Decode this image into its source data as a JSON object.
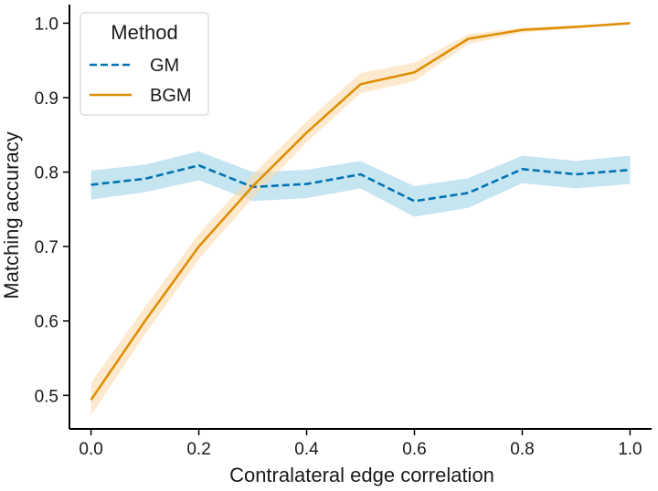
{
  "chart_data": {
    "type": "line",
    "title": "",
    "xlabel": "Contralateral edge correlation",
    "ylabel": "Matching accuracy",
    "xlim": [
      -0.04,
      1.04
    ],
    "ylim": [
      0.455,
      1.025
    ],
    "xticks": [
      0.0,
      0.2,
      0.4,
      0.6,
      0.8,
      1.0
    ],
    "xtick_labels": [
      "0.0",
      "0.2",
      "0.4",
      "0.6",
      "0.8",
      "1.0"
    ],
    "yticks": [
      0.5,
      0.6,
      0.7,
      0.8,
      0.9,
      1.0
    ],
    "ytick_labels": [
      "0.5",
      "0.6",
      "0.7",
      "0.8",
      "0.9",
      "1.0"
    ],
    "grid": false,
    "legend": {
      "title": "Method",
      "placement": "top-left"
    },
    "x": [
      0.0,
      0.1,
      0.2,
      0.3,
      0.4,
      0.5,
      0.6,
      0.7,
      0.8,
      0.9,
      1.0
    ],
    "series": [
      {
        "name": "GM",
        "color": "#0173b2",
        "band_color": "#9fd3e8",
        "style": "dashed",
        "values": [
          0.783,
          0.791,
          0.809,
          0.78,
          0.784,
          0.797,
          0.761,
          0.772,
          0.804,
          0.797,
          0.803
        ],
        "lower": [
          0.763,
          0.773,
          0.789,
          0.761,
          0.765,
          0.778,
          0.74,
          0.752,
          0.785,
          0.778,
          0.784
        ],
        "upper": [
          0.802,
          0.81,
          0.828,
          0.8,
          0.803,
          0.815,
          0.781,
          0.792,
          0.822,
          0.815,
          0.822
        ]
      },
      {
        "name": "BGM",
        "color": "#de8f05",
        "band_color": "#fbdcae",
        "style": "solid",
        "values": [
          0.494,
          0.6,
          0.7,
          0.781,
          0.853,
          0.918,
          0.934,
          0.979,
          0.991,
          0.995,
          1.0
        ],
        "lower": [
          0.473,
          0.582,
          0.683,
          0.765,
          0.84,
          0.906,
          0.922,
          0.972,
          0.987,
          0.993,
          1.0
        ],
        "upper": [
          0.517,
          0.619,
          0.717,
          0.797,
          0.868,
          0.933,
          0.947,
          0.985,
          0.994,
          0.997,
          1.0
        ]
      }
    ]
  }
}
